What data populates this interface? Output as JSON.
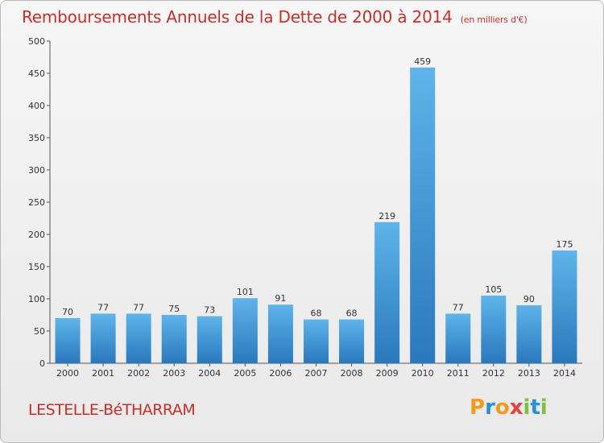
{
  "chart_data": {
    "type": "bar",
    "title": "Remboursements Annuels de la Dette de 2000 à 2014",
    "subtitle": "(en milliers d'€)",
    "categories": [
      "2000",
      "2001",
      "2002",
      "2003",
      "2004",
      "2005",
      "2006",
      "2007",
      "2008",
      "2009",
      "2010",
      "2011",
      "2012",
      "2013",
      "2014"
    ],
    "values": [
      70,
      77,
      77,
      75,
      73,
      101,
      91,
      68,
      68,
      219,
      459,
      77,
      105,
      90,
      175
    ],
    "ylim": [
      0,
      500
    ],
    "yticks": [
      0,
      50,
      100,
      150,
      200,
      250,
      300,
      350,
      400,
      450,
      500
    ],
    "grid": false,
    "bar_color_top": "#5fb4ea",
    "bar_color_bottom": "#2a78bd"
  },
  "commune": "LESTELLE-BéTHARRAM",
  "logo": {
    "letters": [
      "P",
      "r",
      "o",
      "x",
      "i",
      "t",
      "i"
    ],
    "colors": [
      "#f29a1f",
      "#2b8fd3",
      "#f29a1f",
      "#e8403a",
      "#7cc142",
      "#2b8fd3",
      "#7cc142"
    ]
  }
}
